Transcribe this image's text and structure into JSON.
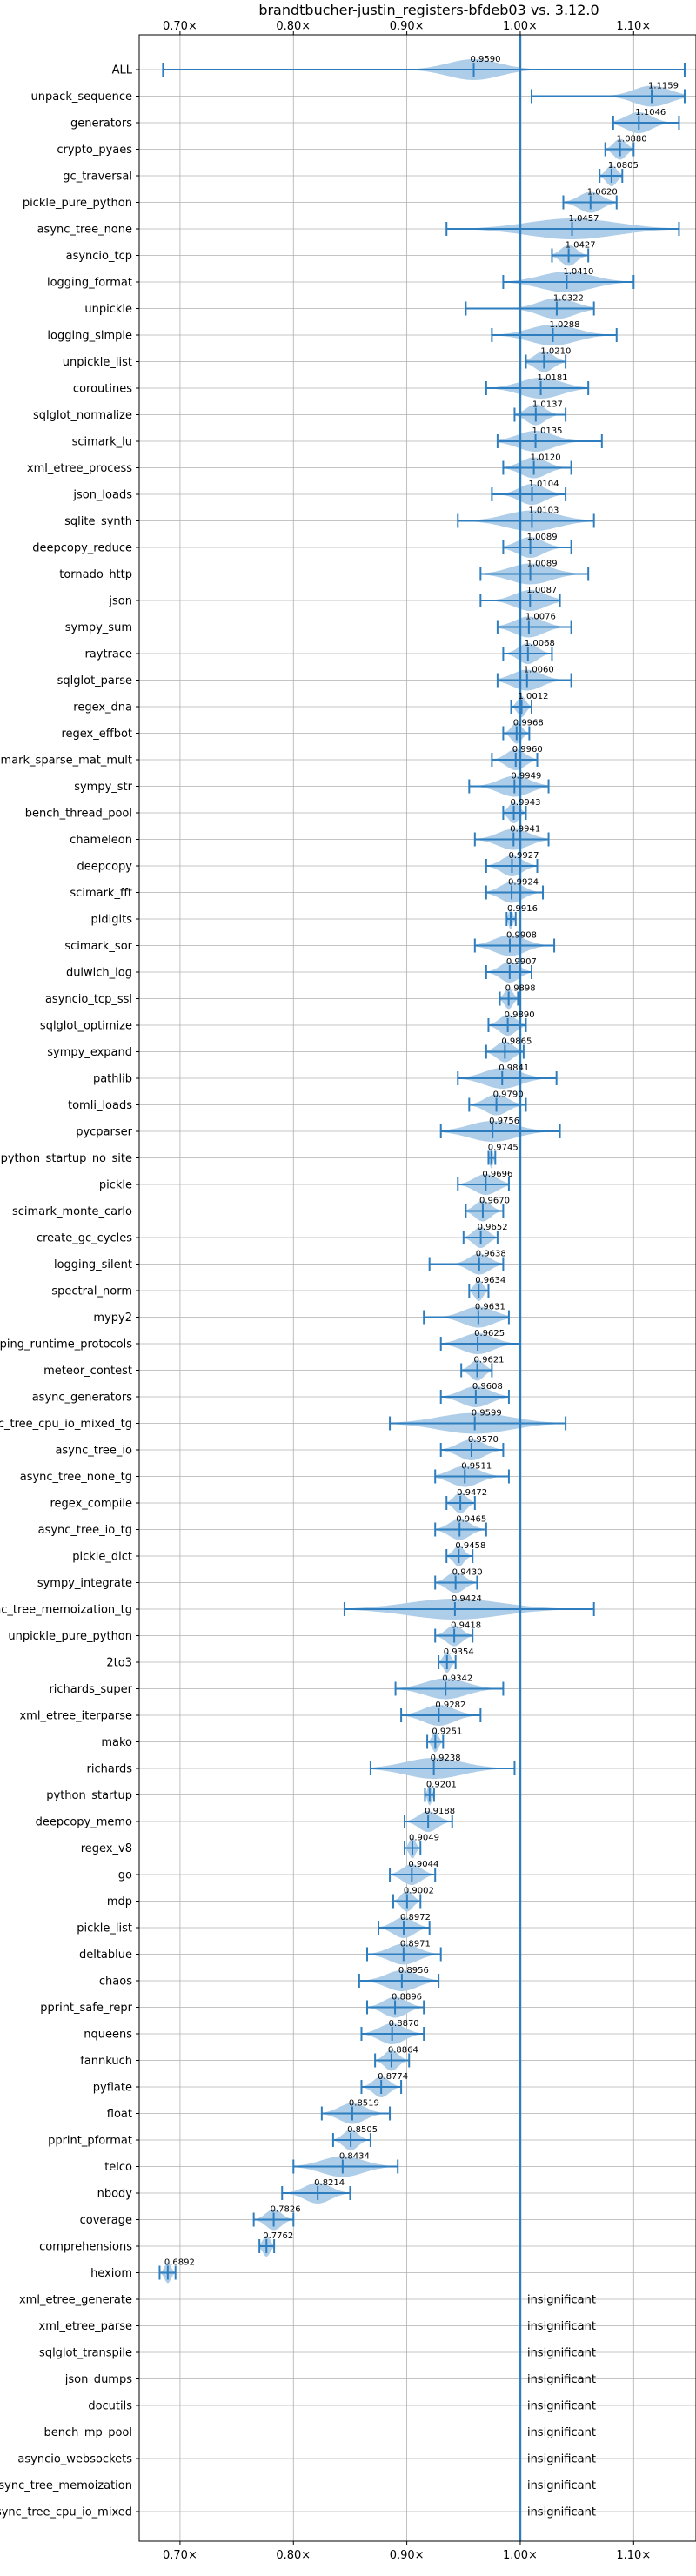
{
  "chart_data": {
    "type": "violin",
    "title": "brandtbucher-justin_registers-bfdeb03 vs. 3.12.0",
    "xlim": [
      0.664,
      1.155
    ],
    "reference_line": 1.0,
    "x_ticks": [
      {
        "value": 0.7,
        "label": "0.70×"
      },
      {
        "value": 0.8,
        "label": "0.80×"
      },
      {
        "value": 0.9,
        "label": "0.90×"
      },
      {
        "value": 1.0,
        "label": "1.00×"
      },
      {
        "value": 1.1,
        "label": "1.10×"
      }
    ],
    "grid": true,
    "colors": {
      "violin": "#aecde8",
      "lines": "#2e7ebf",
      "reference": "#2e7ebf",
      "grid": "#b0b0b0"
    },
    "insignificant_text": "insignificant",
    "benchmarks": [
      {
        "name": "ALL",
        "mean": 0.959,
        "label": "0.9590",
        "min": 0.685,
        "max": 1.145,
        "spread": 0.05
      },
      {
        "name": "unpack_sequence",
        "mean": 1.1159,
        "label": "1.1159",
        "min": 1.01,
        "max": 1.145,
        "spread": 0.035
      },
      {
        "name": "generators",
        "mean": 1.1046,
        "label": "1.1046",
        "min": 1.082,
        "max": 1.14,
        "spread": 0.025
      },
      {
        "name": "crypto_pyaes",
        "mean": 1.088,
        "label": "1.0880",
        "min": 1.075,
        "max": 1.1,
        "spread": 0.012
      },
      {
        "name": "gc_traversal",
        "mean": 1.0805,
        "label": "1.0805",
        "min": 1.07,
        "max": 1.09,
        "spread": 0.01
      },
      {
        "name": "pickle_pure_python",
        "mean": 1.062,
        "label": "1.0620",
        "min": 1.038,
        "max": 1.085,
        "spread": 0.022
      },
      {
        "name": "async_tree_none",
        "mean": 1.0457,
        "label": "1.0457",
        "min": 0.935,
        "max": 1.14,
        "spread": 0.085
      },
      {
        "name": "asyncio_tcp",
        "mean": 1.0427,
        "label": "1.0427",
        "min": 1.028,
        "max": 1.06,
        "spread": 0.015
      },
      {
        "name": "logging_format",
        "mean": 1.041,
        "label": "1.0410",
        "min": 0.985,
        "max": 1.1,
        "spread": 0.05
      },
      {
        "name": "unpickle",
        "mean": 1.0322,
        "label": "1.0322",
        "min": 0.952,
        "max": 1.065,
        "spread": 0.035
      },
      {
        "name": "logging_simple",
        "mean": 1.0288,
        "label": "1.0288",
        "min": 0.975,
        "max": 1.085,
        "spread": 0.045
      },
      {
        "name": "unpickle_list",
        "mean": 1.021,
        "label": "1.0210",
        "min": 1.005,
        "max": 1.04,
        "spread": 0.018
      },
      {
        "name": "coroutines",
        "mean": 1.0181,
        "label": "1.0181",
        "min": 0.97,
        "max": 1.06,
        "spread": 0.04
      },
      {
        "name": "sqlglot_normalize",
        "mean": 1.0137,
        "label": "1.0137",
        "min": 0.995,
        "max": 1.04,
        "spread": 0.018
      },
      {
        "name": "scimark_lu",
        "mean": 1.0135,
        "label": "1.0135",
        "min": 0.98,
        "max": 1.072,
        "spread": 0.035
      },
      {
        "name": "xml_etree_process",
        "mean": 1.012,
        "label": "1.0120",
        "min": 0.985,
        "max": 1.045,
        "spread": 0.025
      },
      {
        "name": "json_loads",
        "mean": 1.0104,
        "label": "1.0104",
        "min": 0.975,
        "max": 1.04,
        "spread": 0.025
      },
      {
        "name": "sqlite_synth",
        "mean": 1.0103,
        "label": "1.0103",
        "min": 0.945,
        "max": 1.065,
        "spread": 0.05
      },
      {
        "name": "deepcopy_reduce",
        "mean": 1.0089,
        "label": "1.0089",
        "min": 0.985,
        "max": 1.045,
        "spread": 0.025
      },
      {
        "name": "tornado_http",
        "mean": 1.0089,
        "label": "1.0089",
        "min": 0.965,
        "max": 1.06,
        "spread": 0.04
      },
      {
        "name": "json",
        "mean": 1.0087,
        "label": "1.0087",
        "min": 0.965,
        "max": 1.035,
        "spread": 0.03
      },
      {
        "name": "sympy_sum",
        "mean": 1.0076,
        "label": "1.0076",
        "min": 0.98,
        "max": 1.045,
        "spread": 0.028
      },
      {
        "name": "raytrace",
        "mean": 1.0068,
        "label": "1.0068",
        "min": 0.985,
        "max": 1.028,
        "spread": 0.018
      },
      {
        "name": "sqlglot_parse",
        "mean": 1.006,
        "label": "1.0060",
        "min": 0.98,
        "max": 1.045,
        "spread": 0.028
      },
      {
        "name": "regex_dna",
        "mean": 1.0012,
        "label": "1.0012",
        "min": 0.992,
        "max": 1.01,
        "spread": 0.008
      },
      {
        "name": "regex_effbot",
        "mean": 0.9968,
        "label": "0.9968",
        "min": 0.985,
        "max": 1.008,
        "spread": 0.01
      },
      {
        "name": "scimark_sparse_mat_mult",
        "mean": 0.996,
        "label": "0.9960",
        "min": 0.975,
        "max": 1.015,
        "spread": 0.018
      },
      {
        "name": "sympy_str",
        "mean": 0.9949,
        "label": "0.9949",
        "min": 0.955,
        "max": 1.025,
        "spread": 0.03
      },
      {
        "name": "bench_thread_pool",
        "mean": 0.9943,
        "label": "0.9943",
        "min": 0.985,
        "max": 1.005,
        "spread": 0.01
      },
      {
        "name": "chameleon",
        "mean": 0.9941,
        "label": "0.9941",
        "min": 0.96,
        "max": 1.025,
        "spread": 0.03
      },
      {
        "name": "deepcopy",
        "mean": 0.9927,
        "label": "0.9927",
        "min": 0.97,
        "max": 1.015,
        "spread": 0.02
      },
      {
        "name": "scimark_fft",
        "mean": 0.9924,
        "label": "0.9924",
        "min": 0.97,
        "max": 1.02,
        "spread": 0.022
      },
      {
        "name": "pidigits",
        "mean": 0.9916,
        "label": "0.9916",
        "min": 0.988,
        "max": 0.996,
        "spread": 0.004
      },
      {
        "name": "scimark_sor",
        "mean": 0.9908,
        "label": "0.9908",
        "min": 0.96,
        "max": 1.03,
        "spread": 0.03
      },
      {
        "name": "dulwich_log",
        "mean": 0.9907,
        "label": "0.9907",
        "min": 0.97,
        "max": 1.01,
        "spread": 0.018
      },
      {
        "name": "asyncio_tcp_ssl",
        "mean": 0.9898,
        "label": "0.9898",
        "min": 0.982,
        "max": 0.998,
        "spread": 0.008
      },
      {
        "name": "sqlglot_optimize",
        "mean": 0.989,
        "label": "0.9890",
        "min": 0.972,
        "max": 1.005,
        "spread": 0.016
      },
      {
        "name": "sympy_expand",
        "mean": 0.9865,
        "label": "0.9865",
        "min": 0.97,
        "max": 1.003,
        "spread": 0.016
      },
      {
        "name": "pathlib",
        "mean": 0.9841,
        "label": "0.9841",
        "min": 0.945,
        "max": 1.032,
        "spread": 0.035
      },
      {
        "name": "tomli_loads",
        "mean": 0.979,
        "label": "0.9790",
        "min": 0.955,
        "max": 1.005,
        "spread": 0.022
      },
      {
        "name": "pycparser",
        "mean": 0.9756,
        "label": "0.9756",
        "min": 0.93,
        "max": 1.035,
        "spread": 0.045
      },
      {
        "name": "python_startup_no_site",
        "mean": 0.9745,
        "label": "0.9745",
        "min": 0.972,
        "max": 0.978,
        "spread": 0.003
      },
      {
        "name": "pickle",
        "mean": 0.9696,
        "label": "0.9696",
        "min": 0.945,
        "max": 0.99,
        "spread": 0.022
      },
      {
        "name": "scimark_monte_carlo",
        "mean": 0.967,
        "label": "0.9670",
        "min": 0.952,
        "max": 0.985,
        "spread": 0.015
      },
      {
        "name": "create_gc_cycles",
        "mean": 0.9652,
        "label": "0.9652",
        "min": 0.95,
        "max": 0.98,
        "spread": 0.014
      },
      {
        "name": "logging_silent",
        "mean": 0.9638,
        "label": "0.9638",
        "min": 0.92,
        "max": 0.985,
        "spread": 0.02
      },
      {
        "name": "spectral_norm",
        "mean": 0.9634,
        "label": "0.9634",
        "min": 0.955,
        "max": 0.972,
        "spread": 0.008
      },
      {
        "name": "mypy2",
        "mean": 0.9631,
        "label": "0.9631",
        "min": 0.915,
        "max": 0.99,
        "spread": 0.03
      },
      {
        "name": "typing_runtime_protocols",
        "mean": 0.9625,
        "label": "0.9625",
        "min": 0.93,
        "max": 1.0,
        "spread": 0.03
      },
      {
        "name": "meteor_contest",
        "mean": 0.9621,
        "label": "0.9621",
        "min": 0.948,
        "max": 0.975,
        "spread": 0.013
      },
      {
        "name": "async_generators",
        "mean": 0.9608,
        "label": "0.9608",
        "min": 0.93,
        "max": 0.99,
        "spread": 0.028
      },
      {
        "name": "async_tree_cpu_io_mixed_tg",
        "mean": 0.9599,
        "label": "0.9599",
        "min": 0.885,
        "max": 1.04,
        "spread": 0.07
      },
      {
        "name": "async_tree_io",
        "mean": 0.957,
        "label": "0.9570",
        "min": 0.93,
        "max": 0.985,
        "spread": 0.025
      },
      {
        "name": "async_tree_none_tg",
        "mean": 0.9511,
        "label": "0.9511",
        "min": 0.925,
        "max": 0.99,
        "spread": 0.028
      },
      {
        "name": "regex_compile",
        "mean": 0.9472,
        "label": "0.9472",
        "min": 0.935,
        "max": 0.96,
        "spread": 0.012
      },
      {
        "name": "async_tree_io_tg",
        "mean": 0.9465,
        "label": "0.9465",
        "min": 0.925,
        "max": 0.97,
        "spread": 0.02
      },
      {
        "name": "pickle_dict",
        "mean": 0.9458,
        "label": "0.9458",
        "min": 0.935,
        "max": 0.958,
        "spread": 0.01
      },
      {
        "name": "sympy_integrate",
        "mean": 0.943,
        "label": "0.9430",
        "min": 0.925,
        "max": 0.962,
        "spread": 0.017
      },
      {
        "name": "async_tree_memoization_tg",
        "mean": 0.9424,
        "label": "0.9424",
        "min": 0.845,
        "max": 1.065,
        "spread": 0.09
      },
      {
        "name": "unpickle_pure_python",
        "mean": 0.9418,
        "label": "0.9418",
        "min": 0.925,
        "max": 0.958,
        "spread": 0.015
      },
      {
        "name": "2to3",
        "mean": 0.9354,
        "label": "0.9354",
        "min": 0.928,
        "max": 0.943,
        "spread": 0.007
      },
      {
        "name": "richards_super",
        "mean": 0.9342,
        "label": "0.9342",
        "min": 0.89,
        "max": 0.985,
        "spread": 0.04
      },
      {
        "name": "xml_etree_iterparse",
        "mean": 0.9282,
        "label": "0.9282",
        "min": 0.895,
        "max": 0.965,
        "spread": 0.03
      },
      {
        "name": "mako",
        "mean": 0.9251,
        "label": "0.9251",
        "min": 0.918,
        "max": 0.932,
        "spread": 0.006
      },
      {
        "name": "richards",
        "mean": 0.9238,
        "label": "0.9238",
        "min": 0.868,
        "max": 0.995,
        "spread": 0.055
      },
      {
        "name": "python_startup",
        "mean": 0.9201,
        "label": "0.9201",
        "min": 0.916,
        "max": 0.924,
        "spread": 0.004
      },
      {
        "name": "deepcopy_memo",
        "mean": 0.9188,
        "label": "0.9188",
        "min": 0.898,
        "max": 0.94,
        "spread": 0.018
      },
      {
        "name": "regex_v8",
        "mean": 0.9049,
        "label": "0.9049",
        "min": 0.898,
        "max": 0.912,
        "spread": 0.006
      },
      {
        "name": "go",
        "mean": 0.9044,
        "label": "0.9044",
        "min": 0.885,
        "max": 0.925,
        "spread": 0.018
      },
      {
        "name": "mdp",
        "mean": 0.9002,
        "label": "0.9002",
        "min": 0.888,
        "max": 0.912,
        "spread": 0.011
      },
      {
        "name": "pickle_list",
        "mean": 0.8972,
        "label": "0.8972",
        "min": 0.875,
        "max": 0.92,
        "spread": 0.02
      },
      {
        "name": "deltablue",
        "mean": 0.8971,
        "label": "0.8971",
        "min": 0.865,
        "max": 0.93,
        "spread": 0.028
      },
      {
        "name": "chaos",
        "mean": 0.8956,
        "label": "0.8956",
        "min": 0.858,
        "max": 0.928,
        "spread": 0.03
      },
      {
        "name": "pprint_safe_repr",
        "mean": 0.8896,
        "label": "0.8896",
        "min": 0.865,
        "max": 0.915,
        "spread": 0.022
      },
      {
        "name": "nqueens",
        "mean": 0.887,
        "label": "0.8870",
        "min": 0.86,
        "max": 0.915,
        "spread": 0.024
      },
      {
        "name": "fannkuch",
        "mean": 0.8864,
        "label": "0.8864",
        "min": 0.872,
        "max": 0.902,
        "spread": 0.013
      },
      {
        "name": "pyflate",
        "mean": 0.8774,
        "label": "0.8774",
        "min": 0.86,
        "max": 0.895,
        "spread": 0.015
      },
      {
        "name": "float",
        "mean": 0.8519,
        "label": "0.8519",
        "min": 0.825,
        "max": 0.885,
        "spread": 0.025
      },
      {
        "name": "pprint_pformat",
        "mean": 0.8505,
        "label": "0.8505",
        "min": 0.835,
        "max": 0.868,
        "spread": 0.014
      },
      {
        "name": "telco",
        "mean": 0.8434,
        "label": "0.8434",
        "min": 0.8,
        "max": 0.892,
        "spread": 0.04
      },
      {
        "name": "nbody",
        "mean": 0.8214,
        "label": "0.8214",
        "min": 0.79,
        "max": 0.85,
        "spread": 0.025
      },
      {
        "name": "coverage",
        "mean": 0.7826,
        "label": "0.7826",
        "min": 0.765,
        "max": 0.8,
        "spread": 0.015
      },
      {
        "name": "comprehensions",
        "mean": 0.7762,
        "label": "0.7762",
        "min": 0.77,
        "max": 0.783,
        "spread": 0.007
      },
      {
        "name": "hexiom",
        "mean": 0.6892,
        "label": "0.6892",
        "min": 0.682,
        "max": 0.696,
        "spread": 0.006
      },
      {
        "name": "xml_etree_generate",
        "insignificant": true
      },
      {
        "name": "xml_etree_parse",
        "insignificant": true
      },
      {
        "name": "sqlglot_transpile",
        "insignificant": true
      },
      {
        "name": "json_dumps",
        "insignificant": true
      },
      {
        "name": "docutils",
        "insignificant": true
      },
      {
        "name": "bench_mp_pool",
        "insignificant": true
      },
      {
        "name": "asyncio_websockets",
        "insignificant": true
      },
      {
        "name": "async_tree_memoization",
        "insignificant": true
      },
      {
        "name": "async_tree_cpu_io_mixed",
        "insignificant": true
      }
    ]
  }
}
